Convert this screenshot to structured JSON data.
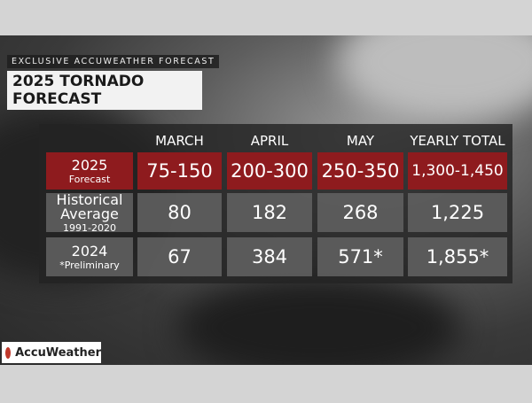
{
  "header": {
    "kicker": "EXCLUSIVE ACCUWEATHER FORECAST",
    "title": "2025 TORNADO FORECAST"
  },
  "table": {
    "columns": [
      "MARCH",
      "APRIL",
      "MAY",
      "YEARLY TOTAL"
    ],
    "rows": [
      {
        "label": "2025",
        "sublabel": "Forecast",
        "cells": [
          "75-150",
          "200-300",
          "250-350",
          "1,300-1,450"
        ]
      },
      {
        "label": "Historical Average",
        "sublabel": "1991-2020",
        "cells": [
          "80",
          "182",
          "268",
          "1,225"
        ]
      },
      {
        "label": "2024",
        "sublabel": "*Preliminary",
        "cells": [
          "67",
          "384",
          "571*",
          "1,855*"
        ]
      }
    ]
  },
  "logo": {
    "text": "AccuWeather"
  }
}
